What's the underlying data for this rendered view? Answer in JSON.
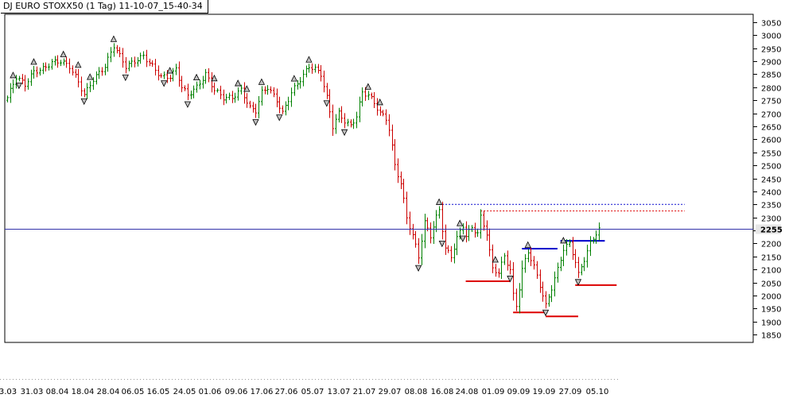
{
  "title": "DJ EURO STOXX50 (1 Tag) 11-10-07_15-40-34",
  "colors": {
    "up": "#008000",
    "down": "#cc0000",
    "frame": "#000000",
    "hline": "#3333aa",
    "marker_fill": "#c0c0c0",
    "blue_level": "#0000cc",
    "red_level": "#dd0000",
    "current_bg": "#e6e6e6"
  },
  "chart_data": {
    "type": "ohlc",
    "ylim": [
      1820,
      3080
    ],
    "y_ticks": [
      1850,
      1900,
      1950,
      2000,
      2050,
      2100,
      2150,
      2200,
      2250,
      2300,
      2350,
      2400,
      2450,
      2500,
      2550,
      2600,
      2650,
      2700,
      2750,
      2800,
      2850,
      2900,
      2950,
      3000,
      3050
    ],
    "current_value": 2255,
    "current_label": "2255",
    "x_labels": [
      "3.03",
      "31.03",
      "08.04",
      "18.04",
      "28.04",
      "06.05",
      "16.05",
      "24.05",
      "01.06",
      "09.06",
      "17.06",
      "27.06",
      "05.07",
      "13.07",
      "21.07",
      "29.07",
      "08.08",
      "16.08",
      "24.08",
      "01.09",
      "09.09",
      "19.09",
      "27.09",
      "05.10"
    ],
    "levels": [
      {
        "type": "dotted",
        "color": "blue",
        "value": 2350,
        "from_bar": 146,
        "to_bar": 229
      },
      {
        "type": "dotted",
        "color": "red",
        "value": 2325,
        "from_bar": 160,
        "to_bar": 229
      },
      {
        "type": "solid",
        "color": "blue",
        "value": 2180,
        "from_bar": 174,
        "to_bar": 186
      },
      {
        "type": "solid",
        "color": "blue",
        "value": 2210,
        "from_bar": 187,
        "to_bar": 202
      },
      {
        "type": "solid",
        "color": "red",
        "value": 2055,
        "from_bar": 155,
        "to_bar": 170
      },
      {
        "type": "solid",
        "color": "red",
        "value": 2040,
        "from_bar": 192,
        "to_bar": 206
      },
      {
        "type": "solid",
        "color": "red",
        "value": 1935,
        "from_bar": 171,
        "to_bar": 182
      },
      {
        "type": "solid",
        "color": "red",
        "value": 1920,
        "from_bar": 182,
        "to_bar": 193
      }
    ],
    "key_points": [
      [
        0,
        2760
      ],
      [
        3,
        2840
      ],
      [
        6,
        2810
      ],
      [
        9,
        2860
      ],
      [
        12,
        2870
      ],
      [
        15,
        2895
      ],
      [
        18,
        2900
      ],
      [
        21,
        2880
      ],
      [
        24,
        2820
      ],
      [
        26,
        2770
      ],
      [
        29,
        2830
      ],
      [
        33,
        2880
      ],
      [
        36,
        2960
      ],
      [
        38,
        2920
      ],
      [
        40,
        2880
      ],
      [
        43,
        2900
      ],
      [
        46,
        2920
      ],
      [
        49,
        2880
      ],
      [
        52,
        2840
      ],
      [
        55,
        2840
      ],
      [
        57,
        2870
      ],
      [
        59,
        2800
      ],
      [
        61,
        2770
      ],
      [
        64,
        2800
      ],
      [
        67,
        2850
      ],
      [
        70,
        2790
      ],
      [
        73,
        2760
      ],
      [
        76,
        2760
      ],
      [
        79,
        2790
      ],
      [
        82,
        2720
      ],
      [
        84,
        2710
      ],
      [
        86,
        2780
      ],
      [
        88,
        2800
      ],
      [
        91,
        2750
      ],
      [
        93,
        2700
      ],
      [
        96,
        2780
      ],
      [
        99,
        2830
      ],
      [
        102,
        2880
      ],
      [
        104,
        2870
      ],
      [
        106,
        2850
      ],
      [
        108,
        2760
      ],
      [
        110,
        2650
      ],
      [
        112,
        2700
      ],
      [
        114,
        2670
      ],
      [
        116,
        2650
      ],
      [
        118,
        2690
      ],
      [
        120,
        2780
      ],
      [
        122,
        2770
      ],
      [
        124,
        2740
      ],
      [
        126,
        2700
      ],
      [
        128,
        2680
      ],
      [
        129,
        2640
      ],
      [
        131,
        2500
      ],
      [
        133,
        2430
      ],
      [
        135,
        2300
      ],
      [
        137,
        2230
      ],
      [
        139,
        2150
      ],
      [
        141,
        2280
      ],
      [
        143,
        2230
      ],
      [
        145,
        2300
      ],
      [
        146,
        2330
      ],
      [
        148,
        2180
      ],
      [
        150,
        2150
      ],
      [
        152,
        2220
      ],
      [
        154,
        2270
      ],
      [
        155,
        2230
      ],
      [
        157,
        2260
      ],
      [
        159,
        2240
      ],
      [
        160,
        2300
      ],
      [
        162,
        2240
      ],
      [
        164,
        2100
      ],
      [
        166,
        2090
      ],
      [
        168,
        2150
      ],
      [
        170,
        2100
      ],
      [
        171,
        2000
      ],
      [
        172,
        1960
      ],
      [
        174,
        2100
      ],
      [
        176,
        2170
      ],
      [
        178,
        2110
      ],
      [
        180,
        2040
      ],
      [
        182,
        1960
      ],
      [
        184,
        2030
      ],
      [
        186,
        2100
      ],
      [
        188,
        2180
      ],
      [
        190,
        2200
      ],
      [
        192,
        2130
      ],
      [
        193,
        2080
      ],
      [
        195,
        2140
      ],
      [
        197,
        2200
      ],
      [
        199,
        2240
      ],
      [
        200,
        2260
      ]
    ],
    "peak_markers": [
      2,
      9,
      19,
      24,
      28,
      36,
      55,
      64,
      70,
      78,
      81,
      86,
      97,
      102,
      122,
      126,
      146,
      153,
      165,
      176,
      188
    ],
    "trough_markers": [
      4,
      26,
      40,
      53,
      61,
      84,
      92,
      108,
      114,
      139,
      147,
      154,
      170,
      182,
      193,
      202
    ]
  }
}
